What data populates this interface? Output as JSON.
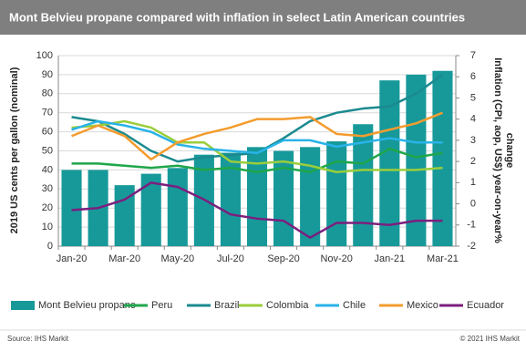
{
  "chart_data": {
    "type": "combo",
    "title": "Mont Belvieu propane compared with inflation in select Latin American countries",
    "y_label": "2019 US cents per gallon (nominal)",
    "y2_label": [
      "Inflation (CPI, aop, US$) year-on-year%",
      "change"
    ],
    "source": "Source: IHS Markit",
    "copyright": "© 2021 IHS Markit",
    "categories": [
      "Jan-20",
      null,
      "Mar-20",
      null,
      "May-20",
      null,
      "Jul-20",
      null,
      "Sep-20",
      null,
      "Nov-20",
      null,
      "Jan-21",
      null,
      "Mar-21"
    ],
    "ylim": [
      0,
      100
    ],
    "yticks": [
      0,
      10,
      20,
      30,
      40,
      50,
      60,
      70,
      80,
      90,
      100
    ],
    "y2lim": [
      -2,
      7
    ],
    "y2ticks": [
      -2,
      -1,
      0,
      1,
      2,
      3,
      4,
      5,
      6,
      7
    ],
    "grid": true,
    "series": [
      {
        "name": "Mont Belvieu propane",
        "type": "bar",
        "axis": "y",
        "color": "#17999a",
        "values": [
          40,
          40,
          32,
          38,
          41,
          48,
          49,
          52,
          50,
          52,
          55,
          64,
          87,
          90,
          92
        ]
      },
      {
        "name": "Peru",
        "type": "line",
        "axis": "y2",
        "color": "#1fa64a",
        "values": [
          1.9,
          1.9,
          1.8,
          1.7,
          1.8,
          1.6,
          1.7,
          1.5,
          1.7,
          1.5,
          2.0,
          1.9,
          2.6,
          2.2,
          2.4
        ]
      },
      {
        "name": "Brazil",
        "type": "line",
        "axis": "y2",
        "color": "#1b8a8f",
        "values": [
          4.1,
          3.9,
          3.3,
          2.5,
          2.0,
          2.2,
          2.3,
          2.4,
          3.1,
          3.9,
          4.3,
          4.5,
          4.6,
          5.2,
          6.1
        ]
      },
      {
        "name": "Colombia",
        "type": "line",
        "axis": "y2",
        "color": "#9acd3c",
        "values": [
          3.6,
          3.7,
          3.9,
          3.6,
          2.9,
          2.9,
          2.0,
          1.9,
          2.0,
          1.8,
          1.5,
          1.6,
          1.6,
          1.6,
          1.7
        ]
      },
      {
        "name": "Chile",
        "type": "line",
        "axis": "y2",
        "color": "#29b3e8",
        "values": [
          3.5,
          3.9,
          3.7,
          3.4,
          2.8,
          2.6,
          2.5,
          2.4,
          3.0,
          3.0,
          2.7,
          2.9,
          3.1,
          2.9,
          2.9
        ]
      },
      {
        "name": "Mexico",
        "type": "line",
        "axis": "y2",
        "color": "#f39c2e",
        "values": [
          3.2,
          3.7,
          3.2,
          2.1,
          2.9,
          3.3,
          3.6,
          4.0,
          4.0,
          4.1,
          3.3,
          3.2,
          3.5,
          3.8,
          4.3
        ]
      },
      {
        "name": "Ecuador",
        "type": "line",
        "axis": "y2",
        "color": "#7b1f7e",
        "values": [
          -0.3,
          -0.2,
          0.2,
          1.0,
          0.8,
          0.2,
          -0.5,
          -0.7,
          -0.8,
          -1.6,
          -0.9,
          -0.9,
          -1.0,
          -0.8,
          -0.8
        ]
      }
    ]
  }
}
